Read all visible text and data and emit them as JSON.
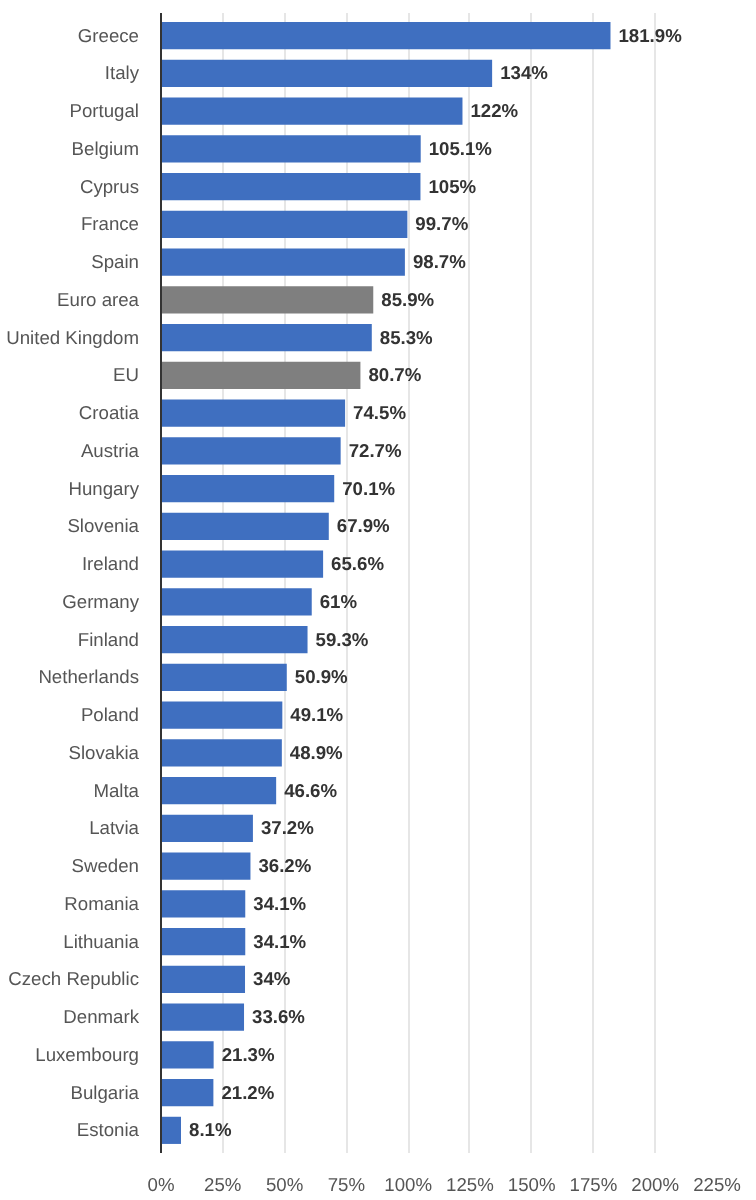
{
  "chart_data": {
    "type": "bar",
    "orientation": "horizontal",
    "categories": [
      "Greece",
      "Italy",
      "Portugal",
      "Belgium",
      "Cyprus",
      "France",
      "Spain",
      "Euro area",
      "United Kingdom",
      "EU",
      "Croatia",
      "Austria",
      "Hungary",
      "Slovenia",
      "Ireland",
      "Germany",
      "Finland",
      "Netherlands",
      "Poland",
      "Slovakia",
      "Malta",
      "Latvia",
      "Sweden",
      "Romania",
      "Lithuania",
      "Czech Republic",
      "Denmark",
      "Luxembourg",
      "Bulgaria",
      "Estonia"
    ],
    "values": [
      181.9,
      134,
      122,
      105.1,
      105,
      99.7,
      98.7,
      85.9,
      85.3,
      80.7,
      74.5,
      72.7,
      70.1,
      67.9,
      65.6,
      61,
      59.3,
      50.9,
      49.1,
      48.9,
      46.6,
      37.2,
      36.2,
      34.1,
      34.1,
      34,
      33.6,
      21.3,
      21.2,
      8.1
    ],
    "value_labels": [
      "181.9%",
      "134%",
      "122%",
      "105.1%",
      "105%",
      "99.7%",
      "98.7%",
      "85.9%",
      "85.3%",
      "80.7%",
      "74.5%",
      "72.7%",
      "70.1%",
      "67.9%",
      "65.6%",
      "61%",
      "59.3%",
      "50.9%",
      "49.1%",
      "48.9%",
      "46.6%",
      "37.2%",
      "36.2%",
      "34.1%",
      "34.1%",
      "34%",
      "33.6%",
      "21.3%",
      "21.2%",
      "8.1%"
    ],
    "colors": [
      "#3f6fc0",
      "#3f6fc0",
      "#3f6fc0",
      "#3f6fc0",
      "#3f6fc0",
      "#3f6fc0",
      "#3f6fc0",
      "#7f7f7f",
      "#3f6fc0",
      "#7f7f7f",
      "#3f6fc0",
      "#3f6fc0",
      "#3f6fc0",
      "#3f6fc0",
      "#3f6fc0",
      "#3f6fc0",
      "#3f6fc0",
      "#3f6fc0",
      "#3f6fc0",
      "#3f6fc0",
      "#3f6fc0",
      "#3f6fc0",
      "#3f6fc0",
      "#3f6fc0",
      "#3f6fc0",
      "#3f6fc0",
      "#3f6fc0",
      "#3f6fc0",
      "#3f6fc0",
      "#3f6fc0"
    ],
    "xlim": [
      0,
      225
    ],
    "xticks": [
      {
        "value": 0,
        "label": "0%"
      },
      {
        "value": 25,
        "label": "25%"
      },
      {
        "value": 50,
        "label": "50%"
      },
      {
        "value": 75,
        "label": "75%"
      },
      {
        "value": 100,
        "label": "100%"
      },
      {
        "value": 125,
        "label": "125%"
      },
      {
        "value": 150,
        "label": "150%"
      },
      {
        "value": 175,
        "label": "175%"
      },
      {
        "value": 200,
        "label": "200%"
      },
      {
        "value": 225,
        "label": "225%"
      }
    ],
    "grid": "x"
  }
}
